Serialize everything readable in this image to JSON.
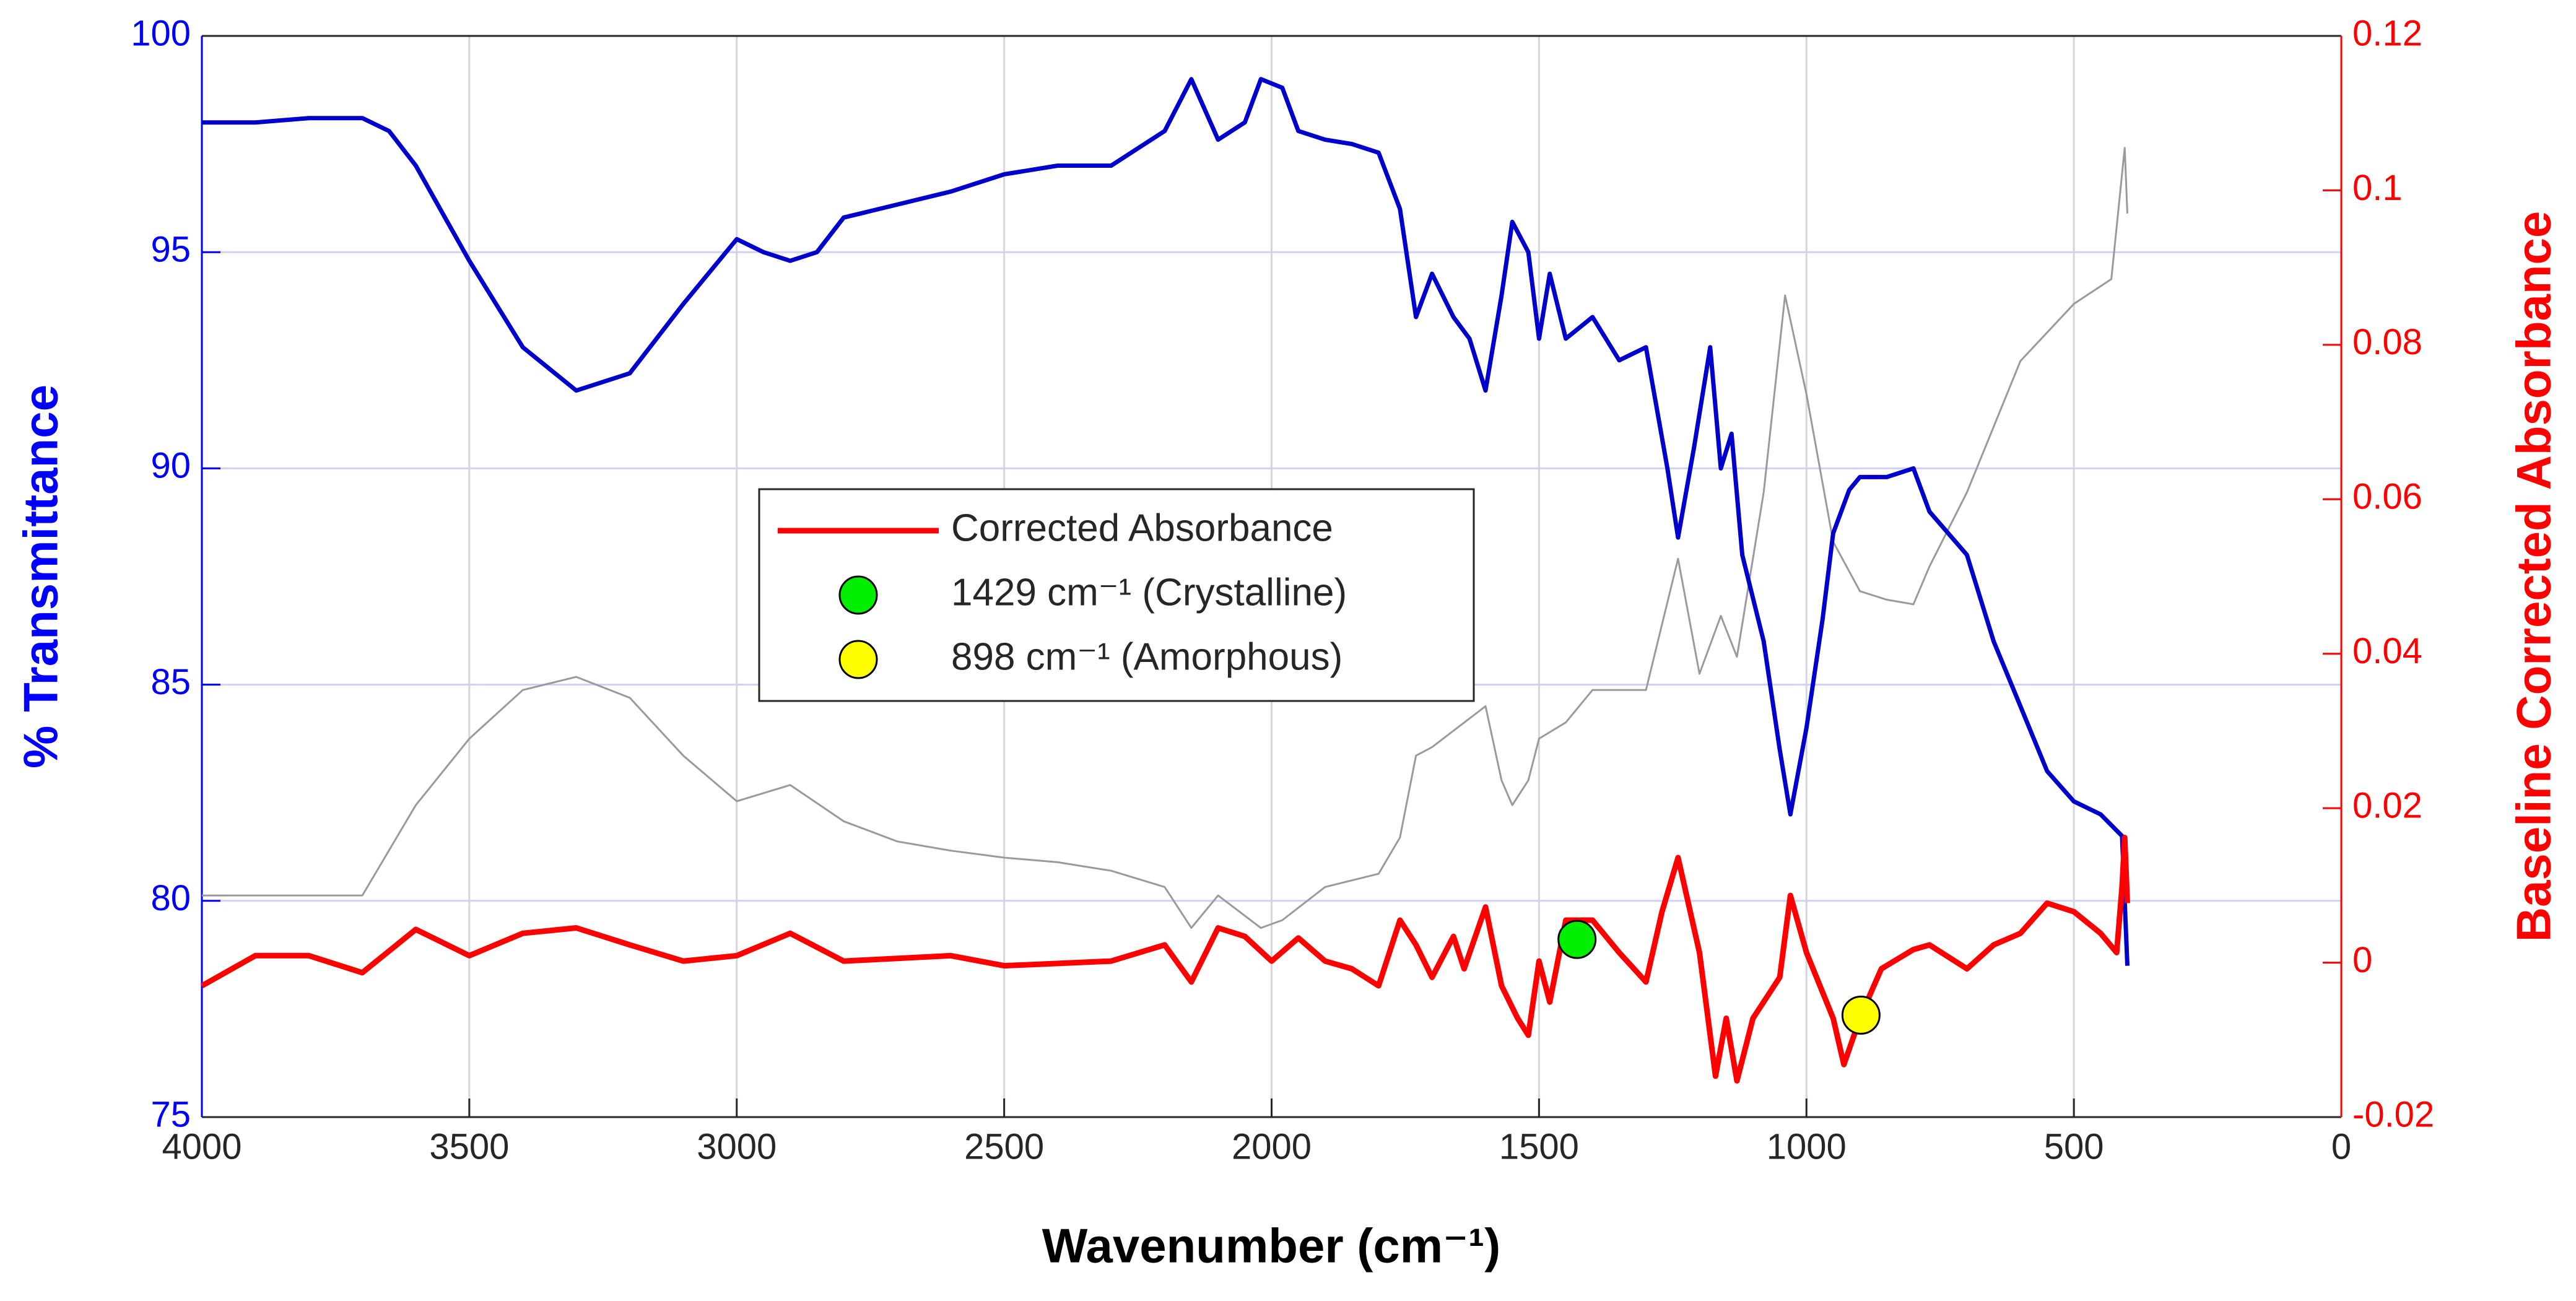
{
  "chart_data": {
    "type": "line",
    "xlabel": "Wavenumber  (cm⁻¹)",
    "ylabel": "% Transmittance",
    "y2label": "Baseline Corrected Absorbance",
    "xlim": [
      4000,
      0
    ],
    "xticks": [
      4000,
      3500,
      3000,
      2500,
      2000,
      1500,
      1000,
      500,
      0
    ],
    "ylim": [
      75,
      100
    ],
    "yticks": [
      75,
      80,
      85,
      90,
      95,
      100
    ],
    "y2lim": [
      -0.02,
      0.12
    ],
    "y2ticks": [
      -0.02,
      0,
      0.02,
      0.04,
      0.06,
      0.08,
      0.1,
      0.12
    ],
    "ycolor": "#0000ff",
    "y2color": "#ff0000",
    "grid": true,
    "legend": "center",
    "series": [
      {
        "color": "#9a9a9a",
        "axis": "y2",
        "x": [
          4000,
          3700,
          3600,
          3500,
          3400,
          3300,
          3200,
          3100,
          3000,
          2900,
          2800,
          2700,
          2600,
          2500,
          2400,
          2300,
          2200,
          2150,
          2100,
          2020,
          1980,
          1900,
          1800,
          1760,
          1730,
          1700,
          1600,
          1570,
          1550,
          1520,
          1500,
          1450,
          1400,
          1300,
          1240,
          1200,
          1160,
          1130,
          1080,
          1040,
          1000,
          950,
          900,
          850,
          800,
          770,
          700,
          600,
          500,
          430,
          405,
          400
        ],
        "values": [
          0.0087,
          0.0087,
          0.0204,
          0.029,
          0.0353,
          0.037,
          0.0343,
          0.0268,
          0.0209,
          0.023,
          0.0183,
          0.0157,
          0.0145,
          0.0136,
          0.013,
          0.0119,
          0.0098,
          0.0045,
          0.0087,
          0.0045,
          0.0055,
          0.0098,
          0.0115,
          0.0162,
          0.0268,
          0.0279,
          0.0332,
          0.0236,
          0.0204,
          0.0236,
          0.029,
          0.0311,
          0.0353,
          0.0353,
          0.0523,
          0.0374,
          0.0449,
          0.0396,
          0.0609,
          0.0864,
          0.0736,
          0.0545,
          0.0481,
          0.047,
          0.0464,
          0.0513,
          0.0609,
          0.0779,
          0.0853,
          0.0885,
          0.1055,
          0.097
        ]
      },
      {
        "color": "#0000cc",
        "axis": "y",
        "x": [
          4000,
          3900,
          3800,
          3700,
          3650,
          3600,
          3500,
          3400,
          3300,
          3200,
          3100,
          3000,
          2950,
          2900,
          2850,
          2800,
          2700,
          2600,
          2500,
          2400,
          2300,
          2200,
          2150,
          2100,
          2050,
          2020,
          1980,
          1950,
          1900,
          1850,
          1800,
          1760,
          1730,
          1700,
          1660,
          1630,
          1600,
          1570,
          1550,
          1520,
          1500,
          1480,
          1450,
          1400,
          1350,
          1300,
          1260,
          1240,
          1210,
          1180,
          1160,
          1140,
          1120,
          1080,
          1050,
          1030,
          1000,
          970,
          950,
          920,
          900,
          850,
          800,
          770,
          700,
          650,
          600,
          550,
          500,
          450,
          410,
          400
        ],
        "values": [
          98.0,
          98.0,
          98.1,
          98.1,
          97.8,
          97.0,
          94.8,
          92.8,
          91.8,
          92.2,
          93.8,
          95.3,
          95.0,
          94.8,
          95.0,
          95.8,
          96.1,
          96.4,
          96.8,
          97.0,
          97.0,
          97.8,
          99.0,
          97.6,
          98.0,
          99.0,
          98.8,
          97.8,
          97.6,
          97.5,
          97.3,
          96.0,
          93.5,
          94.5,
          93.5,
          93.0,
          91.8,
          94.0,
          95.7,
          95.0,
          93.0,
          94.5,
          93.0,
          93.5,
          92.5,
          92.8,
          90.0,
          88.4,
          90.5,
          92.8,
          90.0,
          90.8,
          88.0,
          86.0,
          83.5,
          82.0,
          84.0,
          86.5,
          88.5,
          89.5,
          89.8,
          89.8,
          90.0,
          89.0,
          88.0,
          86.0,
          84.5,
          83.0,
          82.3,
          82.0,
          81.5,
          78.5
        ]
      },
      {
        "name": "Corrected Absorbance",
        "color": "#ff0000",
        "axis": "y2",
        "x": [
          4000,
          3900,
          3800,
          3700,
          3600,
          3500,
          3400,
          3300,
          3200,
          3100,
          3000,
          2900,
          2800,
          2600,
          2500,
          2300,
          2200,
          2150,
          2100,
          2050,
          2000,
          1950,
          1900,
          1850,
          1800,
          1760,
          1730,
          1700,
          1660,
          1640,
          1600,
          1570,
          1540,
          1520,
          1500,
          1480,
          1450,
          1400,
          1350,
          1300,
          1270,
          1240,
          1200,
          1170,
          1150,
          1130,
          1100,
          1050,
          1030,
          1000,
          950,
          930,
          898,
          860,
          800,
          770,
          700,
          650,
          600,
          550,
          500,
          450,
          420,
          410,
          405,
          400
        ],
        "values": [
          -0.003,
          0.0009,
          0.0009,
          -0.0013,
          0.0043,
          0.0009,
          0.0038,
          0.0045,
          0.0023,
          0.0002,
          0.0009,
          0.0038,
          0.0002,
          0.0009,
          -0.0004,
          0.0002,
          0.0023,
          -0.0025,
          0.0045,
          0.0034,
          0.0002,
          0.0032,
          0.0002,
          -0.0008,
          -0.003,
          0.0055,
          0.0023,
          -0.0019,
          0.0034,
          -0.0008,
          0.0072,
          -0.003,
          -0.0072,
          -0.0094,
          0.0002,
          -0.0051,
          0.0055,
          0.0055,
          0.0013,
          -0.0025,
          0.0066,
          0.0136,
          0.0013,
          -0.0147,
          -0.0072,
          -0.0153,
          -0.0072,
          -0.0019,
          0.0087,
          0.0013,
          -0.0072,
          -0.0132,
          -0.0068,
          -0.0008,
          0.0017,
          0.0023,
          -0.0008,
          0.0023,
          0.0038,
          0.0077,
          0.0066,
          0.0038,
          0.0013,
          0.0098,
          0.0162,
          0.0077
        ]
      },
      {
        "name": "1429  cm⁻¹  (Crystalline)",
        "color": "#00ee00",
        "axis": "y2",
        "marker": true,
        "x": [
          1429
        ],
        "values": [
          0.003
        ]
      },
      {
        "name": "898  cm⁻¹  (Amorphous)",
        "color": "#ffff00",
        "axis": "y2",
        "marker": true,
        "x": [
          898
        ],
        "values": [
          -0.0068
        ]
      }
    ]
  }
}
